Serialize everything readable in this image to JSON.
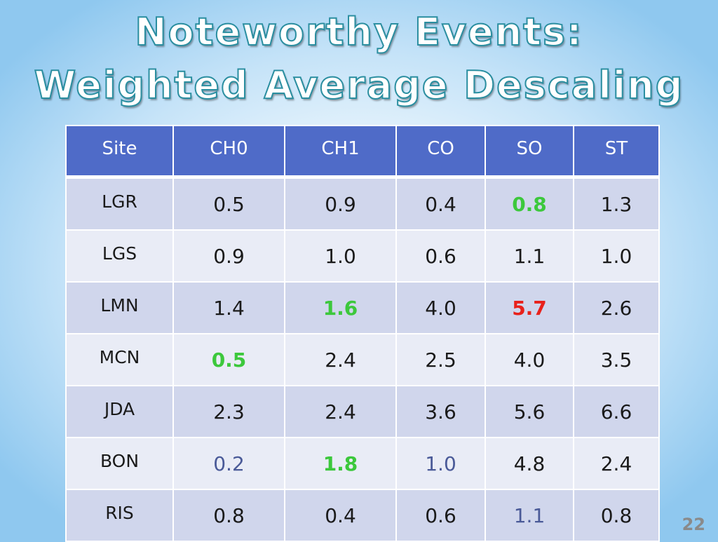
{
  "title": {
    "line1": "Noteworthy Events:",
    "line2": "Weighted Average Descaling"
  },
  "table": {
    "headers": [
      "Site",
      "CH0",
      "CH1",
      "CO",
      "SO",
      "ST"
    ],
    "rows": [
      {
        "site": "LGR",
        "values": [
          "0.5",
          "0.9",
          "0.4",
          "0.8",
          "1.3"
        ]
      },
      {
        "site": "LGS",
        "values": [
          "0.9",
          "1.0",
          "0.6",
          "1.1",
          "1.0"
        ]
      },
      {
        "site": "LMN",
        "values": [
          "1.4",
          "1.6",
          "4.0",
          "5.7",
          "2.6"
        ]
      },
      {
        "site": "MCN",
        "values": [
          "0.5",
          "2.4",
          "2.5",
          "4.0",
          "3.5"
        ]
      },
      {
        "site": "JDA",
        "values": [
          "2.3",
          "2.4",
          "3.6",
          "5.6",
          "6.6"
        ]
      },
      {
        "site": "BON",
        "values": [
          "0.2",
          "1.8",
          "1.0",
          "4.8",
          "2.4"
        ]
      },
      {
        "site": "RIS",
        "values": [
          "0.8",
          "0.4",
          "0.6",
          "1.1",
          "0.8"
        ]
      }
    ]
  },
  "colors": {
    "header_bg": "#4f6bc8",
    "row_odd": "#d0d6ec",
    "row_even": "#e9ecf6",
    "highlight_green": "#3cc83c",
    "highlight_red": "#e8211b",
    "muted_blue": "#4a5a98",
    "title_outline": "#2a8ea0"
  },
  "page_number": "22"
}
